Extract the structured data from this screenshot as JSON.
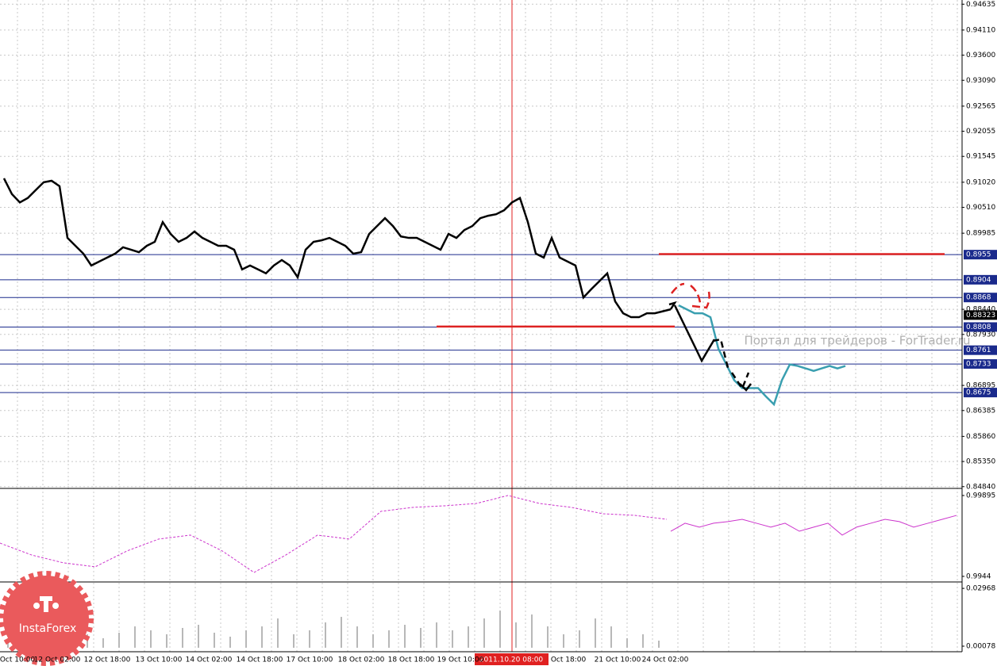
{
  "chart_data": [
    {
      "type": "line",
      "watermark": "Портал для трейдеров - ForTrader.ru",
      "logo": "InstaForex",
      "crosshair_label": "2011.10.20 08:00",
      "x_labels": [
        "Oct 10:00",
        "12 Oct 02:00",
        "12 Oct 18:00",
        "13 Oct 10:00",
        "14 Oct 02:00",
        "14 Oct 18:00",
        "17 Oct 10:00",
        "18 Oct 02:00",
        "18 Oct 18:00",
        "19 Oct 10:00",
        "Oct 18:00",
        "21 Oct 10:00",
        "24 Oct 02:00"
      ],
      "ylim": [
        0.8482,
        0.9472
      ],
      "yticks": [
        0.94635,
        {
          "value": 0.9411,
          "label": "0.94110"
        },
        {
          "value": 0.936,
          "label": "0.93600"
        },
        {
          "value": 0.9309,
          "label": "0.93090"
        },
        0.92565,
        0.92055,
        0.91545,
        {
          "value": 0.9102,
          "label": "0.91020"
        },
        {
          "value": 0.9051,
          "label": "0.90510"
        },
        0.89985,
        {
          "value": 0.8844,
          "label": "0.88440"
        },
        {
          "value": 0.8793,
          "label": "0.87930"
        },
        0.86895,
        0.86385,
        {
          "value": 0.8586,
          "label": "0.85860"
        },
        {
          "value": 0.8535,
          "label": "0.85350"
        },
        {
          "value": 0.8484,
          "label": "0.84840"
        }
      ],
      "grid": true,
      "levels": [
        0.8955,
        0.8904,
        0.8868,
        0.8808,
        0.8761,
        0.8733,
        0.8675
      ],
      "level_color": "#1a2a8c",
      "current": 0.88323,
      "red_lines": [
        0.8956,
        0.8809
      ],
      "red_color": "#dd2222",
      "series": [
        {
          "color": "#000000",
          "values": [
            0.911,
            0.9078,
            0.9061,
            0.907,
            0.9086,
            0.9102,
            0.9105,
            0.9094,
            0.8989,
            0.8973,
            0.8957,
            0.8933,
            0.8941,
            0.8949,
            0.8957,
            0.897,
            0.8965,
            0.896,
            0.8973,
            0.8981,
            0.9021,
            0.8997,
            0.8981,
            0.8989,
            0.9002,
            0.8989,
            0.8981,
            0.8973,
            0.8973,
            0.8965,
            0.8925,
            0.8933,
            0.8925,
            0.8917,
            0.8933,
            0.8944,
            0.8933,
            0.8909,
            0.8965,
            0.8981,
            0.8984,
            0.8989,
            0.8981,
            0.8973,
            0.8957,
            0.896,
            0.8997,
            0.9013,
            0.9029,
            0.9013,
            0.8992,
            0.8989,
            0.8989,
            0.8981,
            0.8973,
            0.8965,
            0.8997,
            0.8989,
            0.9005,
            0.9013,
            0.9029,
            0.9034,
            0.9037,
            0.9045,
            0.9061,
            0.907,
            0.9021,
            0.8957,
            0.8949,
            0.8989,
            0.8949,
            0.8941,
            0.8933,
            0.8868,
            0.8885,
            0.8901,
            0.8917,
            0.886,
            0.8836,
            0.8828,
            0.8828,
            0.8836,
            0.8836,
            0.884,
            0.8844
          ]
        },
        {
          "color": "#3a9fb0",
          "values": [
            0.8852,
            0.8844,
            0.8836,
            0.8836,
            0.8828,
            0.8764,
            0.8732,
            0.87,
            0.8684,
            0.8684,
            0.8684,
            0.8667,
            0.8651,
            0.87,
            0.8732,
            0.8729,
            0.8724,
            0.8719,
            0.8724,
            0.8729,
            0.8724,
            0.8729
          ]
        }
      ]
    },
    {
      "type": "line",
      "ylim": [
        0.99413,
        0.99926
      ],
      "yticks": [
        0.99895,
        0.9944
      ],
      "series": [
        {
          "color": "#cc33cc",
          "style": "dashed",
          "values": [
            0.99627,
            0.9956,
            0.99516,
            0.99494,
            0.99583,
            0.9965,
            0.99672,
            0.99583,
            0.99462,
            0.9956,
            0.99672,
            0.9965,
            0.99806,
            0.99828,
            0.99837,
            0.9985,
            0.99895,
            0.9985,
            0.99828,
            0.99792,
            0.99783,
            0.99761
          ]
        },
        {
          "color": "#cc33cc",
          "values": [
            0.99694,
            0.99739,
            0.99717,
            0.99739,
            0.99748,
            0.99761,
            0.99739,
            0.99717,
            0.99739,
            0.99694,
            0.99717,
            0.99739,
            0.99672,
            0.99717,
            0.99739,
            0.99761,
            0.99748,
            0.99717,
            0.99739,
            0.99761,
            0.99783
          ]
        }
      ]
    },
    {
      "type": "bar",
      "ylim": [
        -0.002,
        0.0325
      ],
      "yticks": [
        0.02968,
        0.00078
      ],
      "color": "#b8b8b8",
      "values": [
        0.00474,
        0.00672,
        0.00355,
        0.0087,
        0.01068,
        0.00672,
        0.00474,
        0.00751,
        0.01068,
        0.0087,
        0.00672,
        0.00989,
        0.01147,
        0.00751,
        0.00553,
        0.0087,
        0.01068,
        0.01464,
        0.00672,
        0.0087,
        0.01266,
        0.01543,
        0.01068,
        0.00672,
        0.0087,
        0.01147,
        0.00989,
        0.01266,
        0.0087,
        0.01068,
        0.01464,
        0.0186,
        0.01266,
        0.01662,
        0.01068,
        0.00672,
        0.0087,
        0.01464,
        0.01068,
        0.00474,
        0.00672,
        0.00355
      ]
    }
  ]
}
